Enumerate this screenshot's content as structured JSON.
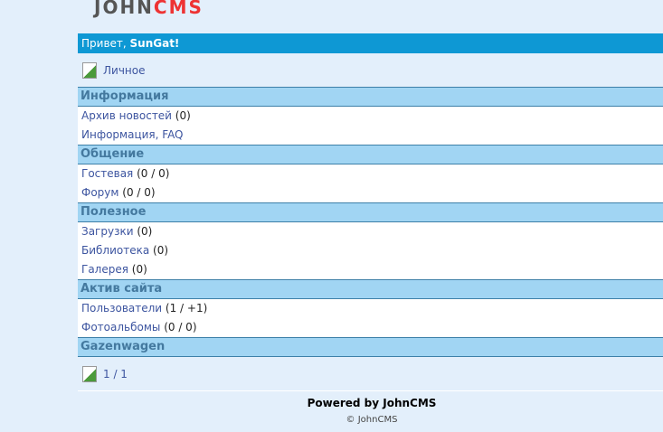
{
  "logo": {
    "text": "JOHN",
    "accent": "CMS"
  },
  "greeting": {
    "prefix": "Привет, ",
    "user": "SunGat!"
  },
  "personal": {
    "label": "Личное"
  },
  "sections": [
    {
      "title": "Информация",
      "items": [
        {
          "label": "Архив новостей",
          "count": " (0)"
        },
        {
          "label": "Информация, FAQ",
          "count": ""
        }
      ]
    },
    {
      "title": "Общение",
      "items": [
        {
          "label": "Гостевая",
          "count": " (0 / 0)"
        },
        {
          "label": "Форум",
          "count": " (0 / 0)"
        }
      ]
    },
    {
      "title": "Полезное",
      "items": [
        {
          "label": "Загрузки",
          "count": " (0)"
        },
        {
          "label": "Библиотека",
          "count": " (0)"
        },
        {
          "label": "Галерея",
          "count": " (0)"
        }
      ]
    },
    {
      "title": "Актив сайта",
      "items": [
        {
          "label": "Пользователи",
          "count": " (1 / +1)"
        },
        {
          "label": "Фотоальбомы",
          "count": " (0 / 0)"
        }
      ]
    }
  ],
  "gazen": {
    "title": "Gazenwagen",
    "counter": "1 / 1"
  },
  "footer": {
    "powered": "Powered by JohnCMS",
    "copyright": "© JohnCMS"
  }
}
